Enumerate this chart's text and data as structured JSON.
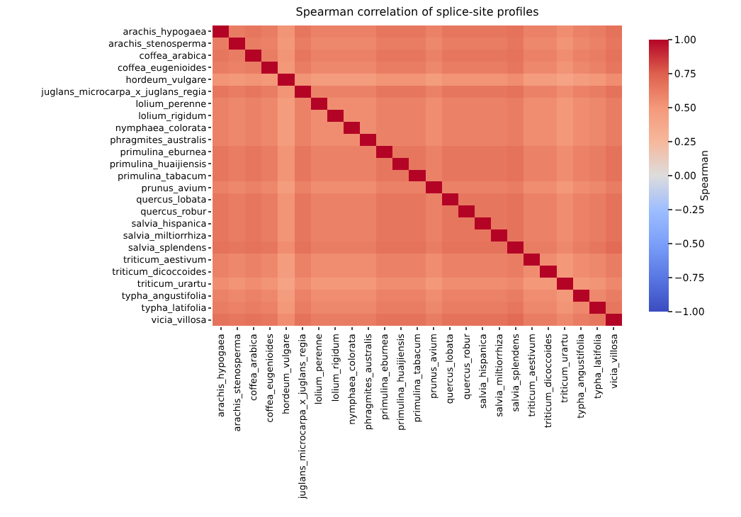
{
  "chart_data": {
    "type": "heatmap",
    "title": "Spearman correlation of splice-site profiles",
    "clabel": "Spearman",
    "categories": [
      "arachis_hypogaea",
      "arachis_stenosperma",
      "coffea_arabica",
      "coffea_eugenioides",
      "hordeum_vulgare",
      "juglans_microcarpa_x_juglans_regia",
      "lolium_perenne",
      "lolium_rigidum",
      "nymphaea_colorata",
      "phragmites_australis",
      "primulina_eburnea",
      "primulina_huaijiensis",
      "primulina_tabacum",
      "prunus_avium",
      "quercus_lobata",
      "quercus_robur",
      "salvia_hispanica",
      "salvia_miltiorrhiza",
      "salvia_splendens",
      "triticum_aestivum",
      "triticum_dicoccoides",
      "triticum_urartu",
      "typha_angustifolia",
      "typha_latifolia",
      "vicia_villosa"
    ],
    "y_categories": [
      "arachis_hypogaea",
      "arachis_stenosperma",
      "coffea_arabica",
      "coffea_eugenioides",
      "hordeum_vulgare",
      "juglans_microcarpa_x_juglans_regia",
      "lolium_perenne",
      "lolium_rigidum",
      "nymphaea_colorata",
      "phragmites_australis",
      "primulina_eburnea",
      "primulina_huaijiensis",
      "primulina_tabacum",
      "prunus_avium",
      "quercus_lobata",
      "quercus_robur",
      "salvia_hispanica",
      "salvia_miltiorrhiza",
      "salvia_splendens",
      "triticum_aestivum",
      "triticum_dicoccoides",
      "triticum_urartu",
      "typha_angustifolia",
      "typha_latifolia",
      "vicia_villosa"
    ],
    "cells": [
      [
        1,
        0.62,
        0.65,
        0.62,
        0.52,
        0.65,
        0.6,
        0.6,
        0.6,
        0.6,
        0.65,
        0.65,
        0.65,
        0.6,
        0.65,
        0.65,
        0.65,
        0.65,
        0.67,
        0.6,
        0.6,
        0.55,
        0.6,
        0.62,
        0.67
      ],
      [
        0.62,
        1,
        0.62,
        0.6,
        0.5,
        0.62,
        0.57,
        0.57,
        0.57,
        0.57,
        0.62,
        0.62,
        0.62,
        0.57,
        0.62,
        0.62,
        0.62,
        0.62,
        0.65,
        0.57,
        0.57,
        0.52,
        0.57,
        0.6,
        0.65
      ],
      [
        0.65,
        0.62,
        1,
        0.62,
        0.52,
        0.65,
        0.6,
        0.6,
        0.6,
        0.6,
        0.65,
        0.65,
        0.65,
        0.6,
        0.65,
        0.65,
        0.65,
        0.65,
        0.67,
        0.6,
        0.6,
        0.55,
        0.6,
        0.62,
        0.67
      ],
      [
        0.62,
        0.6,
        0.62,
        1,
        0.5,
        0.62,
        0.57,
        0.57,
        0.57,
        0.57,
        0.62,
        0.62,
        0.62,
        0.57,
        0.62,
        0.62,
        0.62,
        0.62,
        0.65,
        0.57,
        0.57,
        0.52,
        0.57,
        0.6,
        0.65
      ],
      [
        0.52,
        0.5,
        0.52,
        0.5,
        1,
        0.52,
        0.47,
        0.47,
        0.47,
        0.47,
        0.52,
        0.52,
        0.52,
        0.47,
        0.52,
        0.52,
        0.52,
        0.52,
        0.55,
        0.47,
        0.47,
        0.42,
        0.47,
        0.5,
        0.55
      ],
      [
        0.65,
        0.62,
        0.65,
        0.62,
        0.52,
        1,
        0.6,
        0.6,
        0.6,
        0.6,
        0.65,
        0.65,
        0.65,
        0.6,
        0.65,
        0.65,
        0.65,
        0.65,
        0.67,
        0.6,
        0.6,
        0.55,
        0.6,
        0.62,
        0.67
      ],
      [
        0.6,
        0.57,
        0.6,
        0.57,
        0.47,
        0.6,
        1,
        0.55,
        0.55,
        0.55,
        0.6,
        0.6,
        0.6,
        0.55,
        0.6,
        0.6,
        0.6,
        0.6,
        0.62,
        0.55,
        0.55,
        0.5,
        0.55,
        0.57,
        0.62
      ],
      [
        0.6,
        0.57,
        0.6,
        0.57,
        0.47,
        0.6,
        0.55,
        1,
        0.55,
        0.55,
        0.6,
        0.6,
        0.6,
        0.55,
        0.6,
        0.6,
        0.6,
        0.6,
        0.62,
        0.55,
        0.55,
        0.5,
        0.55,
        0.57,
        0.62
      ],
      [
        0.6,
        0.57,
        0.6,
        0.57,
        0.47,
        0.6,
        0.55,
        0.55,
        1,
        0.55,
        0.6,
        0.6,
        0.6,
        0.55,
        0.6,
        0.6,
        0.6,
        0.6,
        0.62,
        0.55,
        0.55,
        0.5,
        0.55,
        0.57,
        0.62
      ],
      [
        0.6,
        0.57,
        0.6,
        0.57,
        0.47,
        0.6,
        0.55,
        0.55,
        0.55,
        1,
        0.6,
        0.6,
        0.6,
        0.55,
        0.6,
        0.6,
        0.6,
        0.6,
        0.62,
        0.55,
        0.55,
        0.5,
        0.55,
        0.57,
        0.62
      ],
      [
        0.65,
        0.62,
        0.65,
        0.62,
        0.52,
        0.65,
        0.6,
        0.6,
        0.6,
        0.6,
        1,
        0.65,
        0.65,
        0.6,
        0.65,
        0.65,
        0.65,
        0.65,
        0.67,
        0.6,
        0.6,
        0.55,
        0.6,
        0.62,
        0.67
      ],
      [
        0.65,
        0.62,
        0.65,
        0.62,
        0.52,
        0.65,
        0.6,
        0.6,
        0.6,
        0.6,
        0.65,
        1,
        0.65,
        0.6,
        0.65,
        0.65,
        0.65,
        0.65,
        0.67,
        0.6,
        0.6,
        0.55,
        0.6,
        0.62,
        0.67
      ],
      [
        0.65,
        0.62,
        0.65,
        0.62,
        0.52,
        0.65,
        0.6,
        0.6,
        0.6,
        0.6,
        0.65,
        0.65,
        1,
        0.6,
        0.65,
        0.65,
        0.65,
        0.65,
        0.67,
        0.6,
        0.6,
        0.55,
        0.6,
        0.62,
        0.67
      ],
      [
        0.6,
        0.57,
        0.6,
        0.57,
        0.47,
        0.6,
        0.55,
        0.55,
        0.55,
        0.55,
        0.6,
        0.6,
        0.6,
        1,
        0.6,
        0.6,
        0.6,
        0.6,
        0.62,
        0.55,
        0.55,
        0.5,
        0.55,
        0.57,
        0.62
      ],
      [
        0.65,
        0.62,
        0.65,
        0.62,
        0.52,
        0.65,
        0.6,
        0.6,
        0.6,
        0.6,
        0.65,
        0.65,
        0.65,
        0.6,
        1,
        0.65,
        0.65,
        0.65,
        0.67,
        0.6,
        0.6,
        0.55,
        0.6,
        0.62,
        0.67
      ],
      [
        0.65,
        0.62,
        0.65,
        0.62,
        0.52,
        0.65,
        0.6,
        0.6,
        0.6,
        0.6,
        0.65,
        0.65,
        0.65,
        0.6,
        0.65,
        1,
        0.65,
        0.65,
        0.67,
        0.6,
        0.6,
        0.55,
        0.6,
        0.62,
        0.67
      ],
      [
        0.65,
        0.62,
        0.65,
        0.62,
        0.52,
        0.65,
        0.6,
        0.6,
        0.6,
        0.6,
        0.65,
        0.65,
        0.65,
        0.6,
        0.65,
        0.65,
        1,
        0.65,
        0.67,
        0.6,
        0.6,
        0.55,
        0.6,
        0.62,
        0.67
      ],
      [
        0.65,
        0.62,
        0.65,
        0.62,
        0.52,
        0.65,
        0.6,
        0.6,
        0.6,
        0.6,
        0.65,
        0.65,
        0.65,
        0.6,
        0.65,
        0.65,
        0.65,
        1,
        0.67,
        0.6,
        0.6,
        0.55,
        0.6,
        0.62,
        0.67
      ],
      [
        0.67,
        0.65,
        0.67,
        0.65,
        0.55,
        0.67,
        0.62,
        0.62,
        0.62,
        0.62,
        0.67,
        0.67,
        0.67,
        0.62,
        0.67,
        0.67,
        0.67,
        0.67,
        1,
        0.62,
        0.62,
        0.57,
        0.62,
        0.65,
        0.7
      ],
      [
        0.6,
        0.57,
        0.6,
        0.57,
        0.47,
        0.6,
        0.55,
        0.55,
        0.55,
        0.55,
        0.6,
        0.6,
        0.6,
        0.55,
        0.6,
        0.6,
        0.6,
        0.6,
        0.62,
        1,
        0.55,
        0.5,
        0.55,
        0.57,
        0.62
      ],
      [
        0.6,
        0.57,
        0.6,
        0.57,
        0.47,
        0.6,
        0.55,
        0.55,
        0.55,
        0.55,
        0.6,
        0.6,
        0.6,
        0.55,
        0.6,
        0.6,
        0.6,
        0.6,
        0.62,
        0.55,
        1,
        0.5,
        0.55,
        0.57,
        0.62
      ],
      [
        0.55,
        0.52,
        0.55,
        0.52,
        0.42,
        0.55,
        0.5,
        0.5,
        0.5,
        0.5,
        0.55,
        0.55,
        0.55,
        0.5,
        0.55,
        0.55,
        0.55,
        0.55,
        0.57,
        0.5,
        0.5,
        1,
        0.5,
        0.52,
        0.57
      ],
      [
        0.6,
        0.57,
        0.6,
        0.57,
        0.47,
        0.6,
        0.55,
        0.55,
        0.55,
        0.55,
        0.6,
        0.6,
        0.6,
        0.55,
        0.6,
        0.6,
        0.6,
        0.6,
        0.62,
        0.55,
        0.55,
        0.5,
        1,
        0.57,
        0.62
      ],
      [
        0.62,
        0.6,
        0.62,
        0.6,
        0.5,
        0.62,
        0.57,
        0.57,
        0.57,
        0.57,
        0.62,
        0.62,
        0.62,
        0.57,
        0.62,
        0.62,
        0.62,
        0.62,
        0.65,
        0.57,
        0.57,
        0.52,
        0.57,
        1,
        0.65
      ],
      [
        0.67,
        0.65,
        0.67,
        0.65,
        0.55,
        0.67,
        0.62,
        0.62,
        0.62,
        0.62,
        0.67,
        0.67,
        0.67,
        0.62,
        0.67,
        0.67,
        0.67,
        0.67,
        0.7,
        0.62,
        0.62,
        0.57,
        0.62,
        0.65,
        1
      ]
    ],
    "clim": [
      -1,
      1
    ],
    "cticks": [
      {
        "value": -1,
        "label": "−1.00"
      },
      {
        "value": -0.75,
        "label": "−0.75"
      },
      {
        "value": -0.5,
        "label": "−0.50"
      },
      {
        "value": -0.25,
        "label": "−0.25"
      },
      {
        "value": 0,
        "label": "0.00"
      },
      {
        "value": 0.25,
        "label": "0.25"
      },
      {
        "value": 0.5,
        "label": "0.50"
      },
      {
        "value": 0.75,
        "label": "0.75"
      },
      {
        "value": 1,
        "label": "1.00"
      }
    ]
  }
}
